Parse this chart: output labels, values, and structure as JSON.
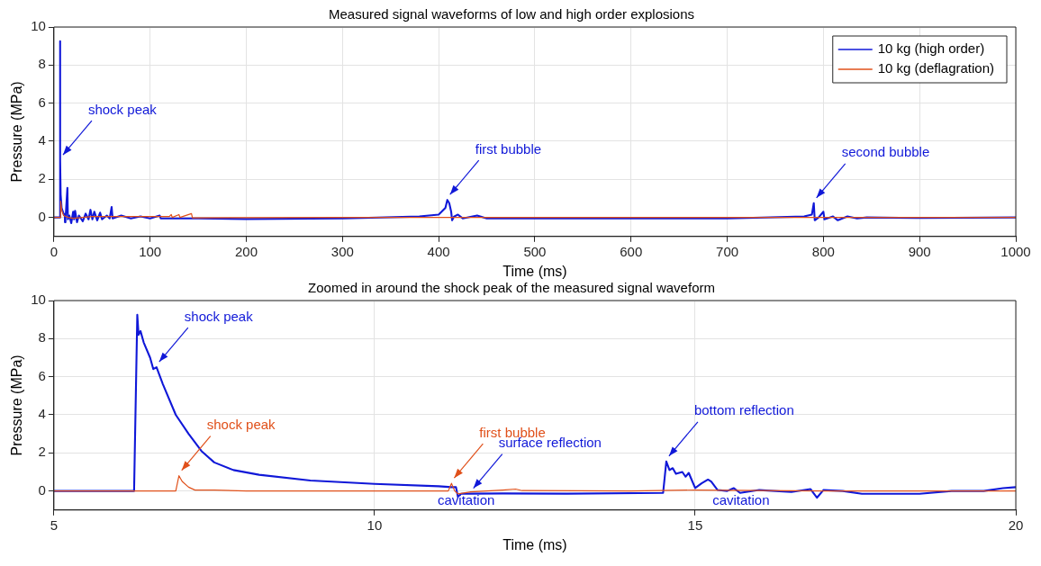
{
  "chart_data": [
    {
      "type": "line",
      "title": "Measured signal waveforms of low and high order explosions",
      "xlabel": "Time (ms)",
      "ylabel": "Pressure (MPa)",
      "xlim": [
        0,
        1000
      ],
      "ylim": [
        -1,
        10
      ],
      "xticks": [
        0,
        100,
        200,
        300,
        400,
        500,
        600,
        700,
        800,
        900,
        1000
      ],
      "yticks": [
        0,
        2,
        4,
        6,
        8,
        10
      ],
      "grid": true,
      "legend": "top right",
      "marker": "none",
      "series": [
        {
          "name": "10 kg (high order)",
          "color": "#1018d8",
          "x": [
            0,
            5.9,
            6.3,
            6.6,
            7,
            8,
            10,
            11.3,
            11.5,
            12,
            14,
            14.5,
            16,
            18,
            20,
            21,
            22,
            24,
            26,
            30,
            33,
            36,
            38,
            40,
            42,
            45,
            48,
            50,
            55,
            58,
            60,
            61,
            70,
            80,
            90,
            100,
            110,
            111,
            150,
            200,
            300,
            380,
            400,
            407,
            409,
            411,
            413,
            414,
            416,
            420,
            425,
            440,
            450,
            500,
            600,
            700,
            780,
            788,
            790,
            791,
            795,
            800,
            801,
            810,
            815,
            825,
            835,
            845,
            900,
            1000
          ],
          "values": [
            0,
            0,
            9.25,
            3,
            1.2,
            0.5,
            0.2,
            0.15,
            -0.25,
            -0.1,
            1.55,
            -0.1,
            0.1,
            -0.3,
            0.3,
            -0.1,
            0.35,
            -0.25,
            0.1,
            -0.2,
            0.2,
            -0.1,
            0.4,
            -0.1,
            0.3,
            -0.15,
            0.25,
            -0.1,
            0.1,
            -0.05,
            0.55,
            -0.05,
            0.1,
            -0.05,
            0.05,
            -0.05,
            0.1,
            -0.05,
            -0.05,
            -0.08,
            -0.05,
            0.05,
            0.15,
            0.5,
            0.92,
            0.75,
            0.3,
            -0.15,
            0.05,
            0.15,
            -0.05,
            0.1,
            -0.05,
            -0.05,
            -0.05,
            -0.05,
            0.05,
            0.15,
            0.75,
            -0.15,
            0,
            0.3,
            -0.1,
            0.05,
            -0.15,
            0.05,
            -0.05,
            0,
            -0.03,
            0
          ]
        },
        {
          "name": "10 kg (deflagration)",
          "color": "#e0501a",
          "x": [
            0,
            6.9,
            7,
            8,
            10,
            15,
            20,
            40,
            120,
            122,
            123,
            130,
            131,
            143,
            144,
            300,
            500,
            700,
            1000
          ],
          "values": [
            0,
            0,
            0.85,
            0.4,
            0.1,
            0,
            -0.05,
            0.05,
            0.05,
            0.15,
            0,
            0.15,
            0,
            0.2,
            -0.02,
            0,
            0,
            0,
            0
          ]
        }
      ],
      "annotations": [
        {
          "text": "shock peak",
          "x": 6.6,
          "y": 3
        },
        {
          "text": "first bubble",
          "x": 409,
          "y": 0.92
        },
        {
          "text": "second bubble",
          "x": 790,
          "y": 0.75
        }
      ]
    },
    {
      "type": "line",
      "title": "Zoomed in around the shock peak of the measured signal waveform",
      "xlabel": "Time (ms)",
      "ylabel": "Pressure (MPa)",
      "xlim": [
        5,
        20
      ],
      "ylim": [
        -1,
        10
      ],
      "xticks": [
        5,
        10,
        15,
        20
      ],
      "yticks": [
        0,
        2,
        4,
        6,
        8,
        10
      ],
      "grid": true,
      "marker": "none",
      "series": [
        {
          "color": "#1018d8",
          "x": [
            5,
            6.25,
            6.3,
            6.32,
            6.35,
            6.4,
            6.5,
            6.55,
            6.6,
            6.7,
            6.9,
            7.1,
            7.3,
            7.5,
            7.8,
            8.2,
            9,
            10,
            11,
            11.2,
            11.27,
            11.3,
            11.35,
            11.5,
            12,
            13,
            14.5,
            14.55,
            14.6,
            14.65,
            14.7,
            14.8,
            14.85,
            14.9,
            14.95,
            15,
            15.1,
            15.2,
            15.25,
            15.35,
            15.5,
            15.6,
            15.7,
            16,
            16.5,
            16.8,
            16.9,
            17,
            17.3,
            17.6,
            18,
            18.5,
            19,
            19.5,
            19.8,
            20
          ],
          "values": [
            0,
            0,
            9.25,
            8.2,
            8.4,
            7.8,
            7.0,
            6.4,
            6.5,
            5.6,
            4.0,
            3.0,
            2.1,
            1.5,
            1.1,
            0.85,
            0.55,
            0.37,
            0.25,
            0.2,
            0.2,
            -0.3,
            -0.15,
            -0.14,
            -0.13,
            -0.14,
            -0.1,
            1.55,
            1.1,
            1.2,
            0.9,
            1.0,
            0.75,
            0.95,
            0.55,
            0.15,
            0.4,
            0.6,
            0.5,
            0.05,
            0.0,
            0.15,
            -0.1,
            0.05,
            -0.05,
            0.1,
            -0.35,
            0.05,
            0,
            -0.15,
            -0.15,
            -0.15,
            0,
            0,
            0.15,
            0.2
          ]
        },
        {
          "color": "#e0501a",
          "x": [
            5,
            6.9,
            6.95,
            7.0,
            7.1,
            7.2,
            7.5,
            8,
            9,
            10,
            11.15,
            11.2,
            11.25,
            11.3,
            11.5,
            12,
            12.2,
            12.3,
            14,
            15,
            17,
            20
          ],
          "values": [
            0,
            0,
            0.8,
            0.5,
            0.2,
            0.05,
            0.05,
            0,
            0,
            0,
            0,
            0.4,
            0.0,
            -0.15,
            -0.05,
            0.05,
            0.1,
            0.02,
            0,
            0.05,
            0,
            0
          ]
        }
      ],
      "annotations": [
        {
          "text": "shock peak",
          "x": 6.6,
          "y": 6.5
        },
        {
          "text": "shock peak",
          "x": 6.95,
          "y": 0.8
        },
        {
          "text": "first bubble",
          "x": 11.2,
          "y": 0.4
        },
        {
          "text": "surface reflection",
          "x": 11.5,
          "y": -0.14
        },
        {
          "text": "bottom reflection",
          "x": 14.55,
          "y": 1.55
        },
        "cavitation",
        "cavitation"
      ]
    }
  ]
}
